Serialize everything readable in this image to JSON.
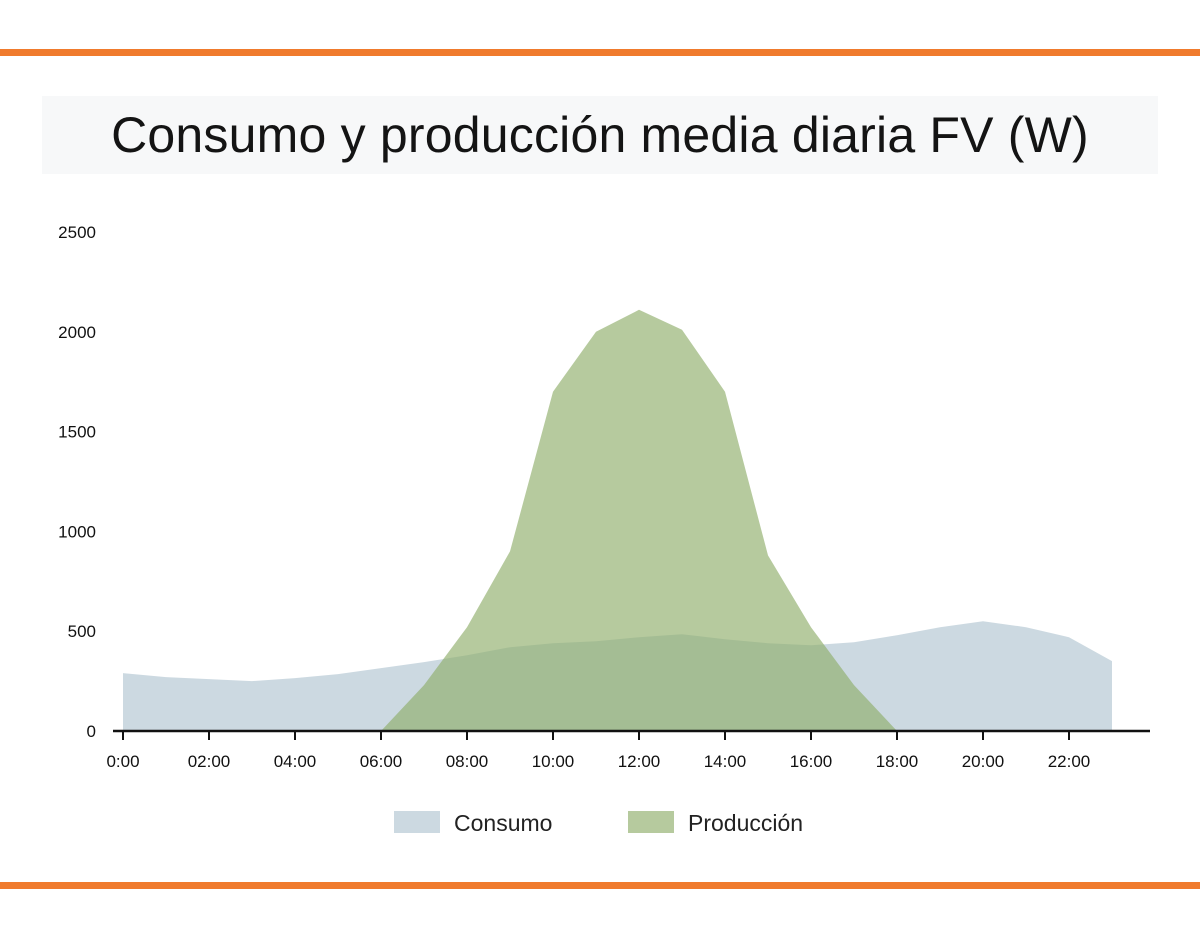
{
  "colors": {
    "accent_bar": "#f07b2d",
    "consumo": "#b9cad6",
    "produccion": "#8fae6a",
    "axis": "#111111"
  },
  "chart_data": {
    "type": "area",
    "title": "Consumo y producción media diaria FV (W)",
    "x": [
      0,
      1,
      2,
      3,
      4,
      5,
      6,
      7,
      8,
      9,
      10,
      11,
      12,
      13,
      14,
      15,
      16,
      17,
      18,
      19,
      20,
      21,
      22,
      23
    ],
    "x_ticks": [
      {
        "value": 0,
        "label": "0:00"
      },
      {
        "value": 2,
        "label": "02:00"
      },
      {
        "value": 4,
        "label": "04:00"
      },
      {
        "value": 6,
        "label": "06:00"
      },
      {
        "value": 8,
        "label": "08:00"
      },
      {
        "value": 10,
        "label": "10:00"
      },
      {
        "value": 12,
        "label": "12:00"
      },
      {
        "value": 14,
        "label": "14:00"
      },
      {
        "value": 16,
        "label": "16:00"
      },
      {
        "value": 18,
        "label": "18:00"
      },
      {
        "value": 20,
        "label": "20:00"
      },
      {
        "value": 22,
        "label": "22:00"
      }
    ],
    "y_ticks": [
      0,
      500,
      1000,
      1500,
      2000,
      2500
    ],
    "xlim": [
      0,
      24
    ],
    "ylim": [
      0,
      2500
    ],
    "grid": false,
    "legend_position": "bottom-center",
    "series": [
      {
        "name": "Consumo",
        "color": "#b9cad6",
        "values": [
          290,
          270,
          260,
          250,
          265,
          285,
          315,
          345,
          380,
          420,
          440,
          450,
          470,
          485,
          460,
          440,
          430,
          445,
          480,
          520,
          550,
          520,
          470,
          350
        ]
      },
      {
        "name": "Producción",
        "color": "#8fae6a",
        "values": [
          0,
          0,
          0,
          0,
          0,
          0,
          0,
          230,
          520,
          900,
          1700,
          2000,
          2110,
          2010,
          1700,
          880,
          520,
          230,
          0,
          0,
          0,
          0,
          0,
          0
        ]
      }
    ]
  }
}
